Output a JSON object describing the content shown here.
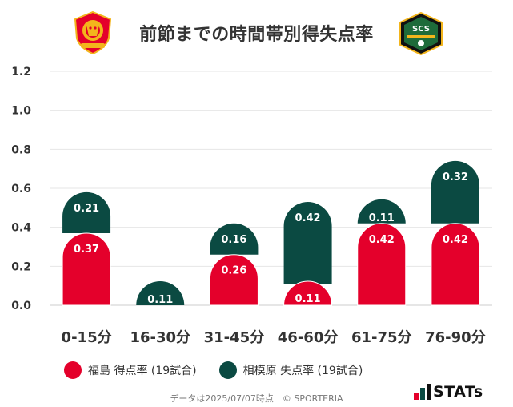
{
  "header": {
    "title": "前節までの時間帯別得失点率",
    "home_logo_text": "FUKUSHIMA UNITED FC",
    "away_logo_text": "SCS"
  },
  "colors": {
    "home": "#e4002b",
    "away": "#0b4a42",
    "grid": "#e6e6e6"
  },
  "chart_data": {
    "type": "bar",
    "stacked": true,
    "categories": [
      "0-15分",
      "16-30分",
      "31-45分",
      "46-60分",
      "61-75分",
      "76-90分"
    ],
    "series": [
      {
        "name": "福島 得点率 (19試合)",
        "values": [
          0.37,
          0,
          0.26,
          0.11,
          0.42,
          0.42
        ]
      },
      {
        "name": "相模原 失点率 (19試合)",
        "values": [
          0.21,
          0.11,
          0.16,
          0.42,
          0.11,
          0.32
        ]
      }
    ],
    "ylim": [
      0,
      1.2
    ],
    "yticks": [
      "0.0",
      "0.2",
      "0.4",
      "0.6",
      "0.8",
      "1.0",
      "1.2"
    ],
    "grid": true,
    "legend_position": "bottom-left"
  },
  "legend": {
    "home_label": "福島 得点率 (19試合)",
    "away_label": "相模原 失点率 (19試合)"
  },
  "footer": {
    "source": "データは2025/07/07時点　© SPORTERIA",
    "brand": "STATs"
  }
}
